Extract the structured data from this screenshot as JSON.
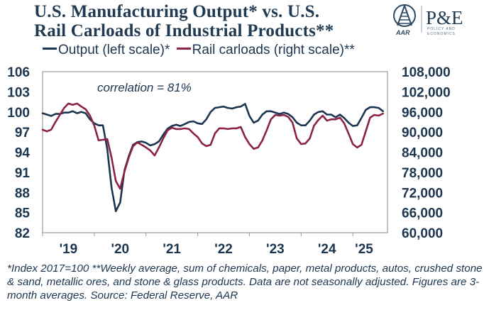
{
  "title_lines": [
    "U.S. Manufacturing Output* vs. U.S.",
    "Rail Carloads of Industrial Products**"
  ],
  "logo": {
    "left_text": "AAR",
    "right_text": "P&E",
    "right_subtext": [
      "POLICY AND",
      "ECONOMICS"
    ],
    "icon": "aar-rail-track-icon"
  },
  "colors": {
    "output": "#1c3550",
    "rail": "#8b2347",
    "text": "#1c3550",
    "title": "#1f3a52",
    "frame": "#9a9a9a"
  },
  "footnote": "*Index 2017=100 **Weekly average, sum of chemicals, paper, metal products, autos, crushed stone & sand, metallic ores, and stone & glass products. Data are not seasonally adjusted. Figures are 3-month averages. Source: Federal Reserve, AAR",
  "chart_data": {
    "type": "line",
    "title": "U.S. Manufacturing Output* vs. U.S. Rail Carloads of Industrial Products**",
    "annotation": "correlation = 81%",
    "xlabel": "",
    "x_start": "2019-01",
    "x_frequency": "monthly",
    "x_tick_labels": [
      "'19",
      "'20",
      "'21",
      "'22",
      "'23",
      "'24",
      "'25"
    ],
    "xlim_years": [
      2019.0,
      2025.67
    ],
    "left_axis": {
      "label": "Output (left scale)*",
      "ylim": [
        82,
        106
      ],
      "ticks": [
        "82",
        "85",
        "88",
        "91",
        "94",
        "97",
        "100",
        "103",
        "106"
      ]
    },
    "right_axis": {
      "label": "Rail carloads (right scale)**",
      "ylim": [
        60000,
        108000
      ],
      "ticks": [
        "60,000",
        "66,000",
        "72,000",
        "78,000",
        "84,000",
        "90,000",
        "96,000",
        "102,000",
        "108,000"
      ]
    },
    "legend": {
      "position": "top",
      "entries": [
        "Output (left scale)*",
        "Rail carloads (right scale)**"
      ]
    },
    "grid": false,
    "series": [
      {
        "name": "Output (left scale)*",
        "axis": "left",
        "values": [
          99.8,
          99.6,
          99.4,
          99.7,
          99.7,
          99.9,
          99.9,
          100.1,
          99.8,
          100.0,
          99.8,
          98.9,
          98.3,
          98.0,
          98.0,
          94.5,
          88.7,
          85.2,
          86.5,
          91.3,
          93.4,
          95.1,
          95.5,
          95.6,
          95.4,
          95.0,
          95.2,
          95.6,
          96.6,
          97.5,
          97.9,
          98.1,
          97.9,
          98.2,
          98.5,
          98.6,
          98.3,
          98.2,
          98.9,
          100.0,
          100.6,
          100.7,
          100.8,
          100.6,
          100.5,
          100.7,
          100.8,
          101.2,
          99.4,
          98.4,
          98.7,
          99.6,
          100.1,
          100.1,
          99.9,
          99.7,
          99.9,
          99.7,
          99.2,
          98.4,
          98.0,
          98.0,
          98.7,
          99.6,
          100.0,
          100.1,
          99.6,
          99.6,
          99.2,
          99.6,
          99.1,
          98.4,
          97.9,
          98.0,
          99.1,
          100.3,
          100.7,
          100.7,
          100.6,
          100.1
        ]
      },
      {
        "name": "Rail carloads (right scale)**",
        "axis": "right",
        "values": [
          90700,
          90200,
          90700,
          93000,
          95100,
          97200,
          98500,
          98100,
          98500,
          97600,
          96800,
          94900,
          91900,
          87500,
          87700,
          87900,
          82400,
          75400,
          73100,
          78200,
          82400,
          85800,
          86900,
          86200,
          85400,
          84500,
          83000,
          85400,
          88100,
          90500,
          91300,
          90900,
          90900,
          91100,
          90900,
          89600,
          88500,
          86600,
          85800,
          86200,
          89600,
          91100,
          91100,
          90900,
          91100,
          91100,
          91500,
          88500,
          86400,
          85000,
          85400,
          87500,
          90500,
          93800,
          95100,
          94900,
          95100,
          94500,
          92800,
          88100,
          86400,
          86600,
          88100,
          91900,
          93600,
          94900,
          93400,
          93800,
          93800,
          94300,
          92600,
          89600,
          86400,
          85400,
          86200,
          90200,
          94300,
          95100,
          94900,
          95500
        ]
      }
    ]
  }
}
